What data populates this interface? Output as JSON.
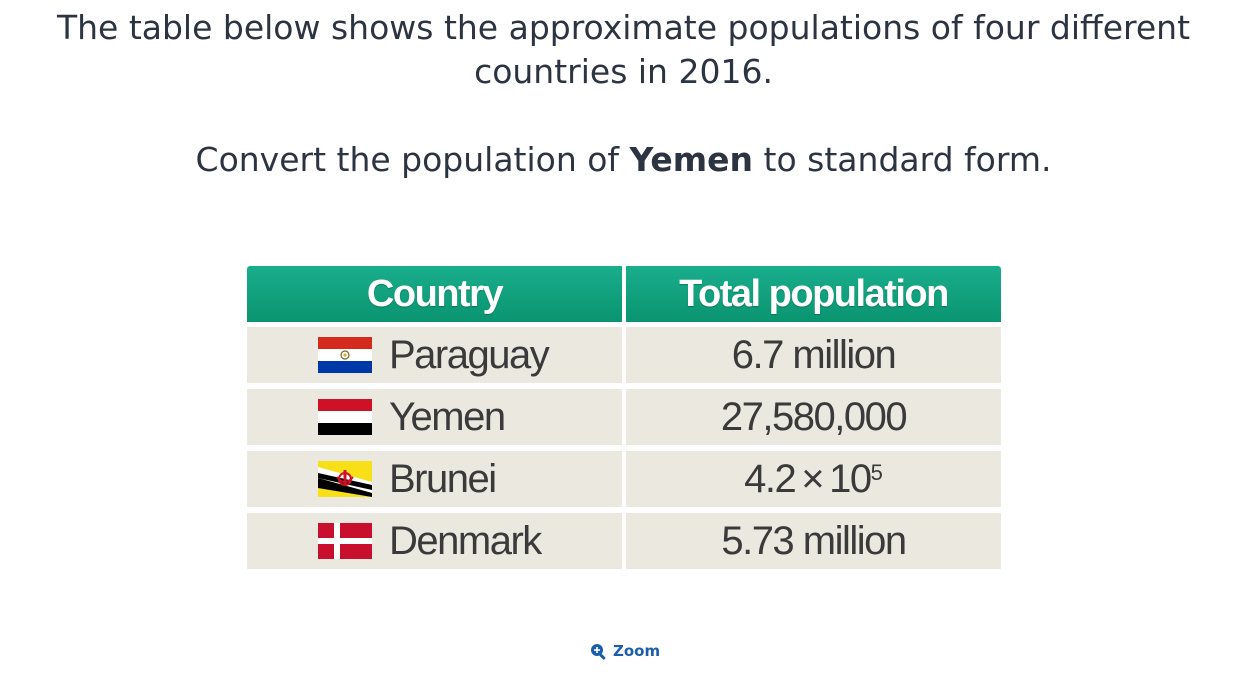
{
  "question": {
    "line1": "The table below shows the approximate populations of four different",
    "line2": "countries in 2016.",
    "instruction_prefix": "Convert the population of ",
    "instruction_bold": "Yemen",
    "instruction_suffix": " to standard form."
  },
  "table": {
    "headers": [
      "Country",
      "Total population"
    ],
    "rows": [
      {
        "country": "Paraguay",
        "flag_icon": "paraguay-flag-icon",
        "population": "6.7 million"
      },
      {
        "country": "Yemen",
        "flag_icon": "yemen-flag-icon",
        "population": "27,580,000"
      },
      {
        "country": "Brunei",
        "flag_icon": "brunei-flag-icon",
        "population_base": "4.2",
        "population_times": "×",
        "population_power": "10",
        "population_exponent": "5"
      },
      {
        "country": "Denmark",
        "flag_icon": "denmark-flag-icon",
        "population": "5.73 million"
      }
    ],
    "colors": {
      "header_green": "#0fa07e",
      "row_background": "#ebe8e0"
    }
  },
  "zoom": {
    "label": "Zoom",
    "icon": "zoom-in-icon",
    "color": "#1c5fa8"
  }
}
